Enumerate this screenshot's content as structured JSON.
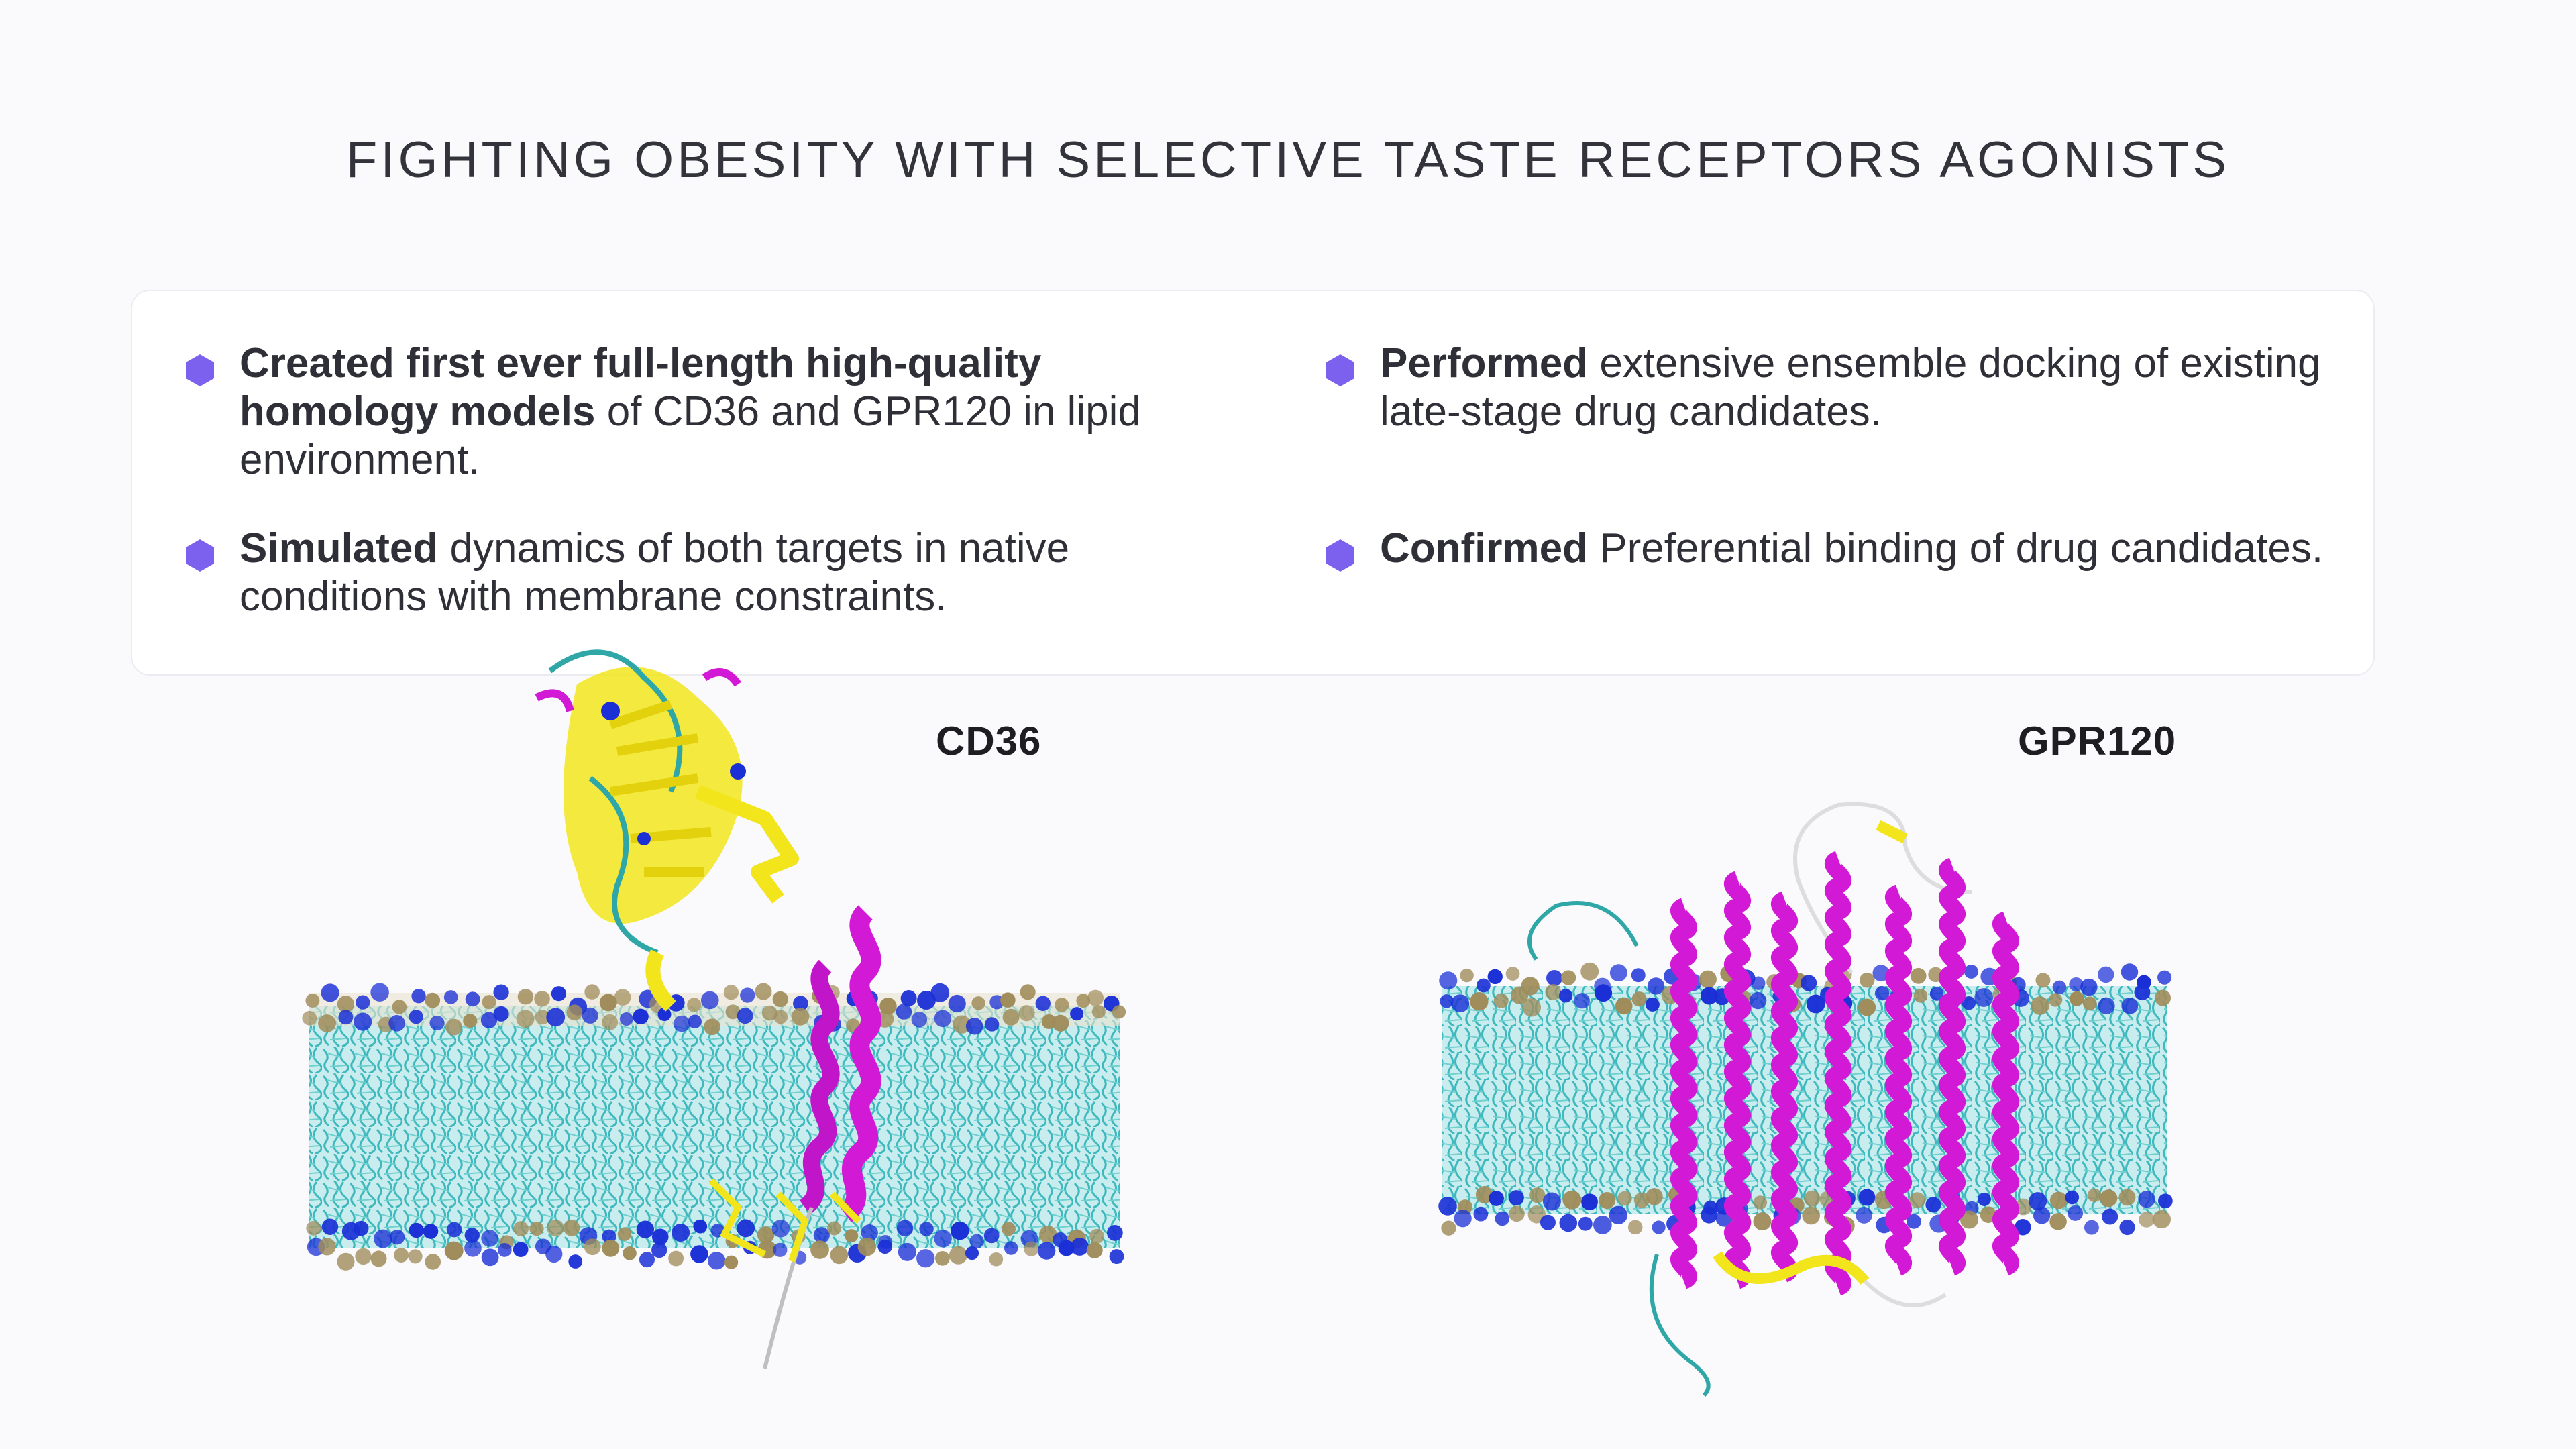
{
  "title": "FIGHTING OBESITY WITH SELECTIVE TASTE RECEPTORS AGONISTS",
  "bullets": [
    {
      "bold": "Created first ever full-length high-quality homology models",
      "rest": " of CD36 and GPR120 in lipid environment."
    },
    {
      "bold": "Performed",
      "rest": " extensive ensemble docking of existing late-stage drug candidates."
    },
    {
      "bold": "Simulated",
      "rest": " dynamics of both targets in native conditions with membrane constraints."
    },
    {
      "bold": "Confirmed",
      "rest": " Preferential binding of drug candidates."
    }
  ],
  "figures": {
    "cd36_label": "CD36",
    "gpr120_label": "GPR120"
  },
  "colors": {
    "accent": "#7b61ee",
    "lipid_tails": "#4fc8c8",
    "headgroup_blue": "#1a2fd6",
    "headgroup_tan": "#a08c5a",
    "helix": "#d21ad6",
    "sheet": "#f2e51c"
  }
}
